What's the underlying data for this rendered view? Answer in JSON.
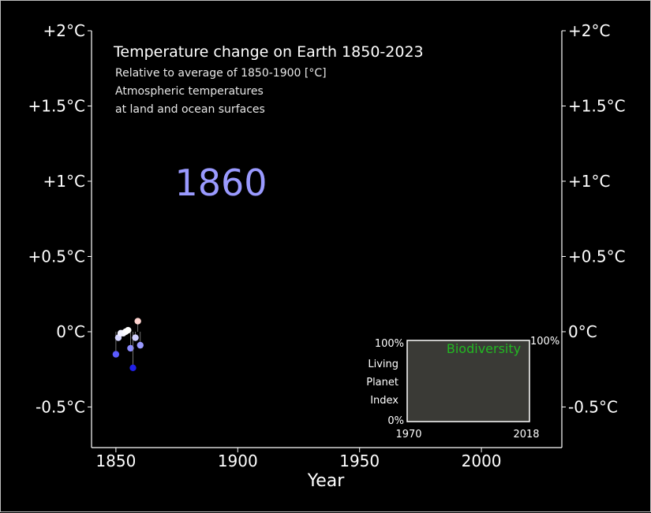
{
  "chart_data": {
    "type": "scatter",
    "title": "Temperature change on Earth 1850-2023",
    "subtitle_lines": [
      "Relative to average of 1850-1900 [°C]",
      "Atmospheric temperatures",
      "at land and ocean surfaces"
    ],
    "current_year": "1860",
    "xlabel": "Year",
    "xlim": [
      1840,
      2033
    ],
    "ylim": [
      -0.77,
      2.0
    ],
    "x_ticks": [
      1850,
      1900,
      1950,
      2000
    ],
    "x_tick_labels": [
      "1850",
      "1900",
      "1950",
      "2000"
    ],
    "y_ticks": [
      2.0,
      1.5,
      1.0,
      0.5,
      0.0,
      -0.5
    ],
    "y_tick_labels": [
      "+2°C",
      "+1.5°C",
      "+1°C",
      "+0.5°C",
      "0°C",
      "-0.5°C"
    ],
    "points": [
      {
        "x": 1850,
        "y": -0.15,
        "color": "#5b5bff"
      },
      {
        "x": 1851,
        "y": -0.04,
        "color": "#d6d6ff"
      },
      {
        "x": 1852,
        "y": -0.01,
        "color": "#f2f2ff"
      },
      {
        "x": 1853,
        "y": -0.01,
        "color": "#f2f2ff"
      },
      {
        "x": 1854,
        "y": -0.0,
        "color": "#fafaff"
      },
      {
        "x": 1855,
        "y": 0.01,
        "color": "#ffffff"
      },
      {
        "x": 1856,
        "y": -0.11,
        "color": "#8a8aff"
      },
      {
        "x": 1857,
        "y": -0.24,
        "color": "#2020e8"
      },
      {
        "x": 1858,
        "y": -0.04,
        "color": "#d0d0ff"
      },
      {
        "x": 1859,
        "y": 0.07,
        "color": "#ffd4d0"
      },
      {
        "x": 1860,
        "y": -0.09,
        "color": "#9a9aff"
      }
    ],
    "inset": {
      "title": "Biodiversity",
      "title_color": "#22b822",
      "ylabel_lines": [
        "Living",
        "Planet",
        "Index"
      ],
      "y_top_label": "100%",
      "y_bottom_label": "0%",
      "y_right_label": "100%",
      "x_start_label": "1970",
      "x_end_label": "2018"
    }
  }
}
